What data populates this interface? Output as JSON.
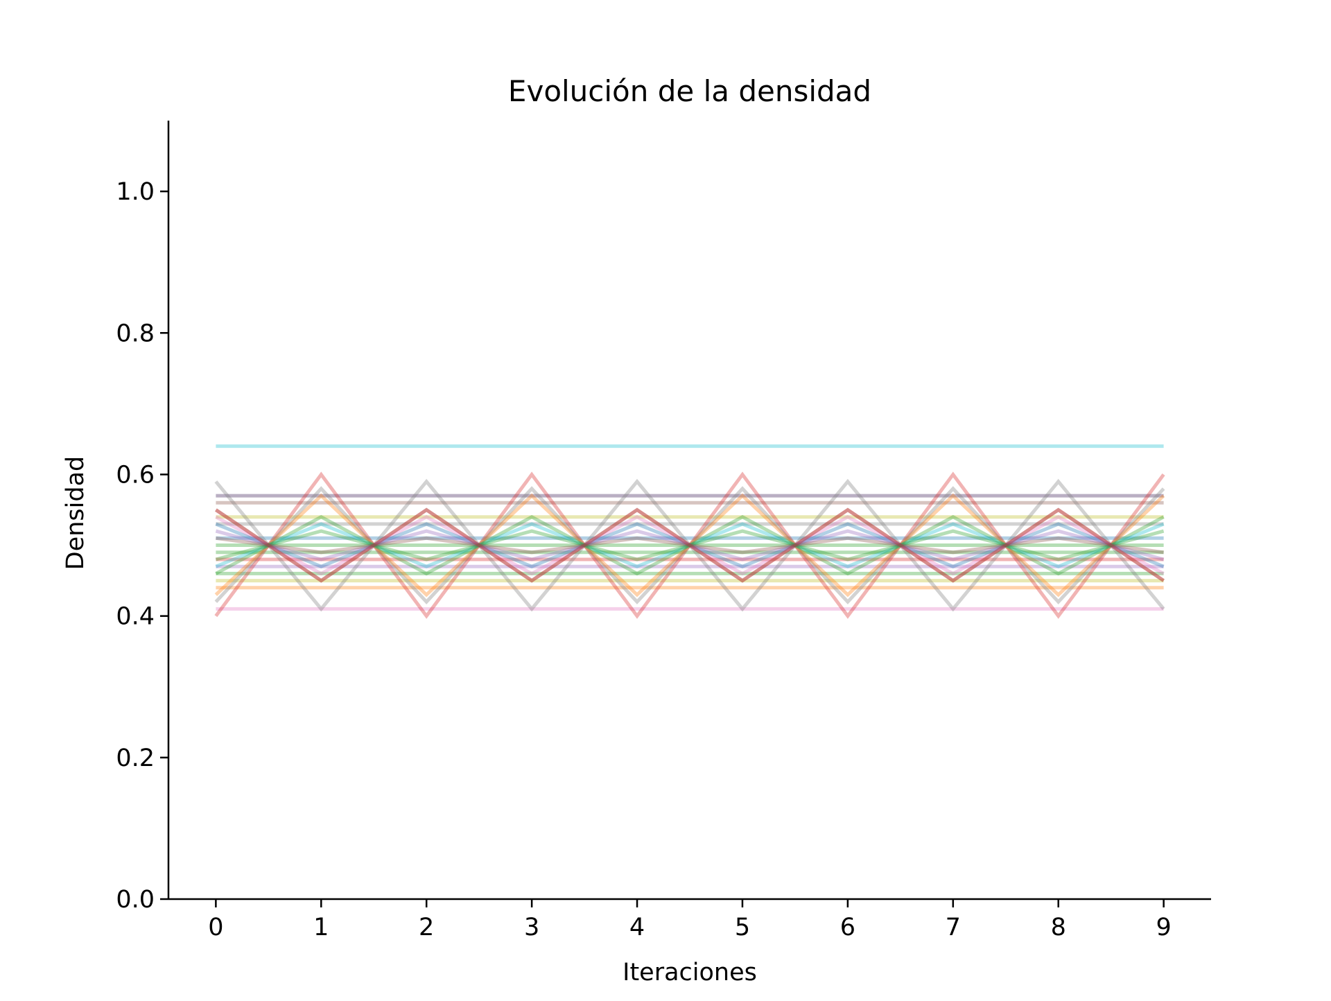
{
  "chart_data": {
    "type": "line",
    "title": "Evolución de la densidad",
    "xlabel": "Iteraciones",
    "ylabel": "Densidad",
    "x": [
      0,
      1,
      2,
      3,
      4,
      5,
      6,
      7,
      8,
      9
    ],
    "xticks": [
      "0",
      "1",
      "2",
      "3",
      "4",
      "5",
      "6",
      "7",
      "8",
      "9"
    ],
    "yticks": [
      "0.0",
      "0.2",
      "0.4",
      "0.6",
      "0.8",
      "1.0"
    ],
    "xlim": [
      -0.45,
      9.45
    ],
    "ylim": [
      0.0,
      1.1
    ],
    "grid": false,
    "legend": false,
    "line_opacity": 0.35,
    "series": [
      {
        "color": "#17becf",
        "values": [
          0.64,
          0.64,
          0.64,
          0.64,
          0.64,
          0.64,
          0.64,
          0.64,
          0.64,
          0.64
        ]
      },
      {
        "color": "#e377c2",
        "values": [
          0.41,
          0.41,
          0.41,
          0.41,
          0.41,
          0.41,
          0.41,
          0.41,
          0.41,
          0.41
        ]
      },
      {
        "color": "#ff7f0e",
        "values": [
          0.44,
          0.44,
          0.44,
          0.44,
          0.44,
          0.44,
          0.44,
          0.44,
          0.44,
          0.44
        ]
      },
      {
        "color": "#9467bd",
        "values": [
          0.57,
          0.57,
          0.57,
          0.57,
          0.57,
          0.57,
          0.57,
          0.57,
          0.57,
          0.57
        ]
      },
      {
        "color": "#7f7f7f",
        "values": [
          0.57,
          0.57,
          0.57,
          0.57,
          0.57,
          0.57,
          0.57,
          0.57,
          0.57,
          0.57
        ]
      },
      {
        "color": "#8c564b",
        "values": [
          0.56,
          0.56,
          0.56,
          0.56,
          0.56,
          0.56,
          0.56,
          0.56,
          0.56,
          0.56
        ]
      },
      {
        "color": "#bcbd22",
        "values": [
          0.54,
          0.54,
          0.54,
          0.54,
          0.54,
          0.54,
          0.54,
          0.54,
          0.54,
          0.54
        ]
      },
      {
        "color": "#7f7f7f",
        "values": [
          0.53,
          0.53,
          0.53,
          0.53,
          0.53,
          0.53,
          0.53,
          0.53,
          0.53,
          0.53
        ]
      },
      {
        "color": "#1f77b4",
        "values": [
          0.51,
          0.51,
          0.51,
          0.51,
          0.51,
          0.51,
          0.51,
          0.51,
          0.51,
          0.51
        ]
      },
      {
        "color": "#2ca02c",
        "values": [
          0.5,
          0.5,
          0.5,
          0.5,
          0.5,
          0.5,
          0.5,
          0.5,
          0.5,
          0.5
        ]
      },
      {
        "color": "#2ca02c",
        "values": [
          0.49,
          0.49,
          0.49,
          0.49,
          0.49,
          0.49,
          0.49,
          0.49,
          0.49,
          0.49
        ]
      },
      {
        "color": "#d62728",
        "values": [
          0.48,
          0.48,
          0.48,
          0.48,
          0.48,
          0.48,
          0.48,
          0.48,
          0.48,
          0.48
        ]
      },
      {
        "color": "#9467bd",
        "values": [
          0.47,
          0.47,
          0.47,
          0.47,
          0.47,
          0.47,
          0.47,
          0.47,
          0.47,
          0.47
        ]
      },
      {
        "color": "#2ca02c",
        "values": [
          0.46,
          0.46,
          0.46,
          0.46,
          0.46,
          0.46,
          0.46,
          0.46,
          0.46,
          0.46
        ]
      },
      {
        "color": "#bcbd22",
        "values": [
          0.45,
          0.45,
          0.45,
          0.45,
          0.45,
          0.45,
          0.45,
          0.45,
          0.45,
          0.45
        ]
      },
      {
        "color": "#d62728",
        "values": [
          0.4,
          0.6,
          0.4,
          0.6,
          0.4,
          0.6,
          0.4,
          0.6,
          0.4,
          0.6
        ]
      },
      {
        "color": "#7f7f7f",
        "values": [
          0.59,
          0.41,
          0.59,
          0.41,
          0.59,
          0.41,
          0.59,
          0.41,
          0.59,
          0.41
        ]
      },
      {
        "color": "#7f7f7f",
        "values": [
          0.42,
          0.58,
          0.42,
          0.58,
          0.42,
          0.58,
          0.42,
          0.58,
          0.42,
          0.58
        ]
      },
      {
        "color": "#ff7f0e",
        "values": [
          0.43,
          0.57,
          0.43,
          0.57,
          0.43,
          0.57,
          0.43,
          0.57,
          0.43,
          0.57
        ]
      },
      {
        "color": "#8c564b",
        "values": [
          0.55,
          0.45,
          0.55,
          0.45,
          0.55,
          0.45,
          0.55,
          0.45,
          0.55,
          0.45
        ]
      },
      {
        "color": "#e377c2",
        "values": [
          0.54,
          0.46,
          0.54,
          0.46,
          0.54,
          0.46,
          0.54,
          0.46,
          0.54,
          0.46
        ]
      },
      {
        "color": "#2ca02c",
        "values": [
          0.46,
          0.54,
          0.46,
          0.54,
          0.46,
          0.54,
          0.46,
          0.54,
          0.46,
          0.54
        ]
      },
      {
        "color": "#17becf",
        "values": [
          0.47,
          0.53,
          0.47,
          0.53,
          0.47,
          0.53,
          0.47,
          0.53,
          0.47,
          0.53
        ]
      },
      {
        "color": "#1f77b4",
        "values": [
          0.53,
          0.47,
          0.53,
          0.47,
          0.53,
          0.47,
          0.53,
          0.47,
          0.53,
          0.47
        ]
      },
      {
        "color": "#9467bd",
        "values": [
          0.52,
          0.48,
          0.52,
          0.48,
          0.52,
          0.48,
          0.52,
          0.48,
          0.52,
          0.48
        ]
      },
      {
        "color": "#2ca02c",
        "values": [
          0.48,
          0.52,
          0.48,
          0.52,
          0.48,
          0.52,
          0.48,
          0.52,
          0.48,
          0.52
        ]
      },
      {
        "color": "#8c564b",
        "values": [
          0.51,
          0.49,
          0.51,
          0.49,
          0.51,
          0.49,
          0.51,
          0.49,
          0.51,
          0.49
        ]
      },
      {
        "color": "#d62728",
        "values": [
          0.55,
          0.45,
          0.55,
          0.45,
          0.55,
          0.45,
          0.55,
          0.45,
          0.55,
          0.45
        ]
      }
    ]
  }
}
